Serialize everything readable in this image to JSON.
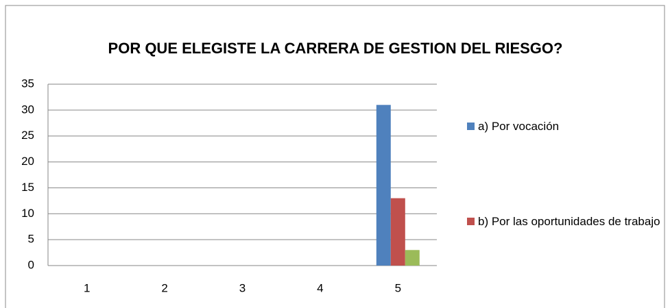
{
  "chart_data": {
    "type": "bar",
    "title": "POR QUE ELEGISTE LA CARRERA DE GESTION DEL RIESGO?",
    "categories": [
      "1",
      "2",
      "3",
      "4",
      "5"
    ],
    "series": [
      {
        "name": "a) Por vocación",
        "color": "#4f81bd",
        "values": [
          0,
          0,
          0,
          0,
          31
        ]
      },
      {
        "name": "b) Por las oportunidades de trabajo",
        "color": "#c0504d",
        "values": [
          0,
          0,
          0,
          0,
          13
        ]
      },
      {
        "color": "#9bbb59",
        "values": [
          0,
          0,
          0,
          0,
          3
        ]
      }
    ],
    "ylim": [
      0,
      35
    ],
    "yticks": [
      0,
      5,
      10,
      15,
      20,
      25,
      30,
      35
    ],
    "grid": true,
    "legend": "right"
  }
}
